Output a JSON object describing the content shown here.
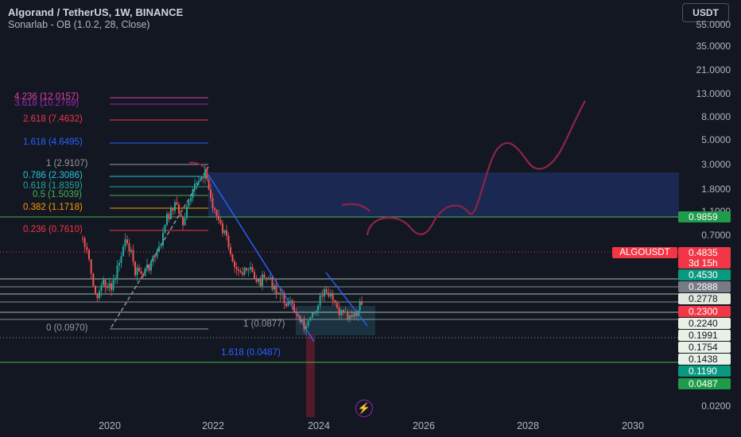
{
  "header": {
    "title": "Algorand / TetherUS, 1W, BINANCE",
    "indicator": "Sonarlab - OB (1.0.2, 28, Close)"
  },
  "currency_button": {
    "label": "USDT"
  },
  "price_axis": {
    "labels": [
      "55.0000",
      "35.0000",
      "21.0000",
      "13.0000",
      "8.0000",
      "5.0000",
      "3.0000",
      "1.8000",
      "1.1000",
      "0.7000",
      "0.0200"
    ]
  },
  "time_axis": {
    "labels": [
      "2020",
      "2022",
      "2024",
      "2026",
      "2028",
      "2030"
    ]
  },
  "price_badges": [
    {
      "value": "0.9859",
      "bg": "#1e9c4a"
    },
    {
      "value": "0.4835",
      "bg": "#f23645"
    },
    {
      "value": "3d 15h",
      "bg": "#f23645"
    },
    {
      "value": "0.4530",
      "bg": "#089981"
    },
    {
      "value": "0.2888",
      "bg": "#787b86"
    },
    {
      "value": "0.2778",
      "bg": "#e1e8e0",
      "fg": "#131722"
    },
    {
      "value": "0.2300",
      "bg": "#f23645"
    },
    {
      "value": "0.2240",
      "bg": "#e8f1e6",
      "fg": "#131722"
    },
    {
      "value": "0.1991",
      "bg": "#e8f1e6",
      "fg": "#131722"
    },
    {
      "value": "0.1754",
      "bg": "#e8f1e6",
      "fg": "#131722"
    },
    {
      "value": "0.1438",
      "bg": "#e8f1e6",
      "fg": "#131722"
    },
    {
      "value": "0.1190",
      "bg": "#089981"
    },
    {
      "value": "0.0487",
      "bg": "#1e9c4a"
    }
  ],
  "symbol_badge": {
    "label": "ALGOUSDT"
  },
  "fib_levels_top": [
    {
      "label": "4.236 (12.0157)",
      "color": "#e040a0"
    },
    {
      "label": "3.618 (10.2769)",
      "color": "#9c27b0"
    },
    {
      "label": "2.618 (7.4632)",
      "color": "#f23645"
    },
    {
      "label": "1.618 (4.6495)",
      "color": "#2962ff"
    },
    {
      "label": "1 (2.9107)",
      "color": "#9598a1"
    },
    {
      "label": "0.786 (2.3086)",
      "color": "#26c6da"
    },
    {
      "label": "0.618 (1.8359)",
      "color": "#26a69a"
    },
    {
      "label": "0.5 (1.5039)",
      "color": "#4caf50"
    },
    {
      "label": "0.382 (1.1718)",
      "color": "#ff9800"
    },
    {
      "label": "0.236 (0.7610)",
      "color": "#f23645"
    },
    {
      "label": "0 (0.0970)",
      "color": "#9598a1"
    }
  ],
  "fib_levels_bottom": [
    {
      "label": "1 (0.0877)",
      "color": "#9598a1"
    },
    {
      "label": "1.618 (0.0487)",
      "color": "#2962ff"
    }
  ],
  "colors": {
    "background": "#131722",
    "candle_up": "#26a69a",
    "candle_down": "#ef5350",
    "trendline": "#2962ff",
    "drawing": "#8e2447",
    "ob_zone": "#1e2b5a"
  },
  "flash_icon": "lightning-icon"
}
